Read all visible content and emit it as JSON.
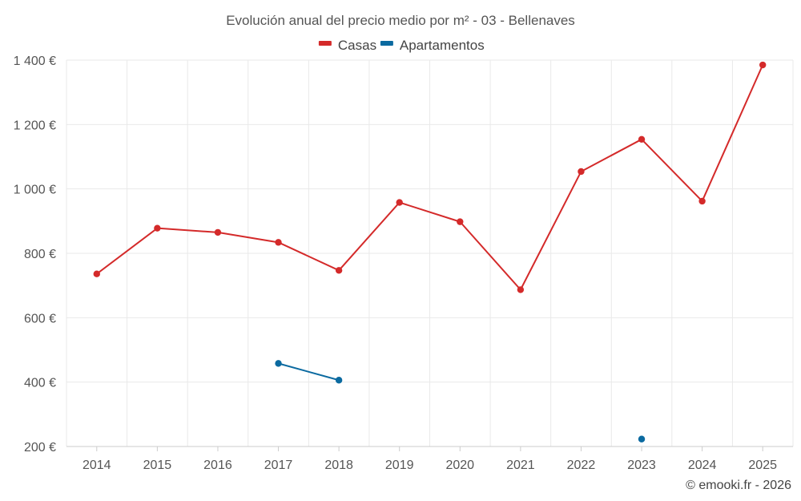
{
  "chart_data": {
    "type": "line",
    "title": "Evolución anual del precio medio por m² - 03 - Bellenaves",
    "x": [
      "2014",
      "2015",
      "2016",
      "2017",
      "2018",
      "2019",
      "2020",
      "2021",
      "2022",
      "2023",
      "2024",
      "2025"
    ],
    "ylim": [
      200,
      1400
    ],
    "yticks": [
      200,
      400,
      600,
      800,
      1000,
      1200,
      1400
    ],
    "ytick_labels": [
      "200 €",
      "400 €",
      "600 €",
      "800 €",
      "1 000 €",
      "1 200 €",
      "1 400 €"
    ],
    "grid": true,
    "legend_position": "top-center",
    "series": [
      {
        "name": "Casas",
        "color": "#d42a2a",
        "values": [
          736,
          878,
          865,
          834,
          747,
          958,
          898,
          687,
          1054,
          1154,
          962,
          1385
        ]
      },
      {
        "name": "Apartamentos",
        "color": "#0b6aa0",
        "values": [
          null,
          null,
          null,
          458,
          406,
          null,
          null,
          null,
          null,
          223,
          null,
          null
        ]
      }
    ]
  },
  "credit": "© emooki.fr - 2026"
}
